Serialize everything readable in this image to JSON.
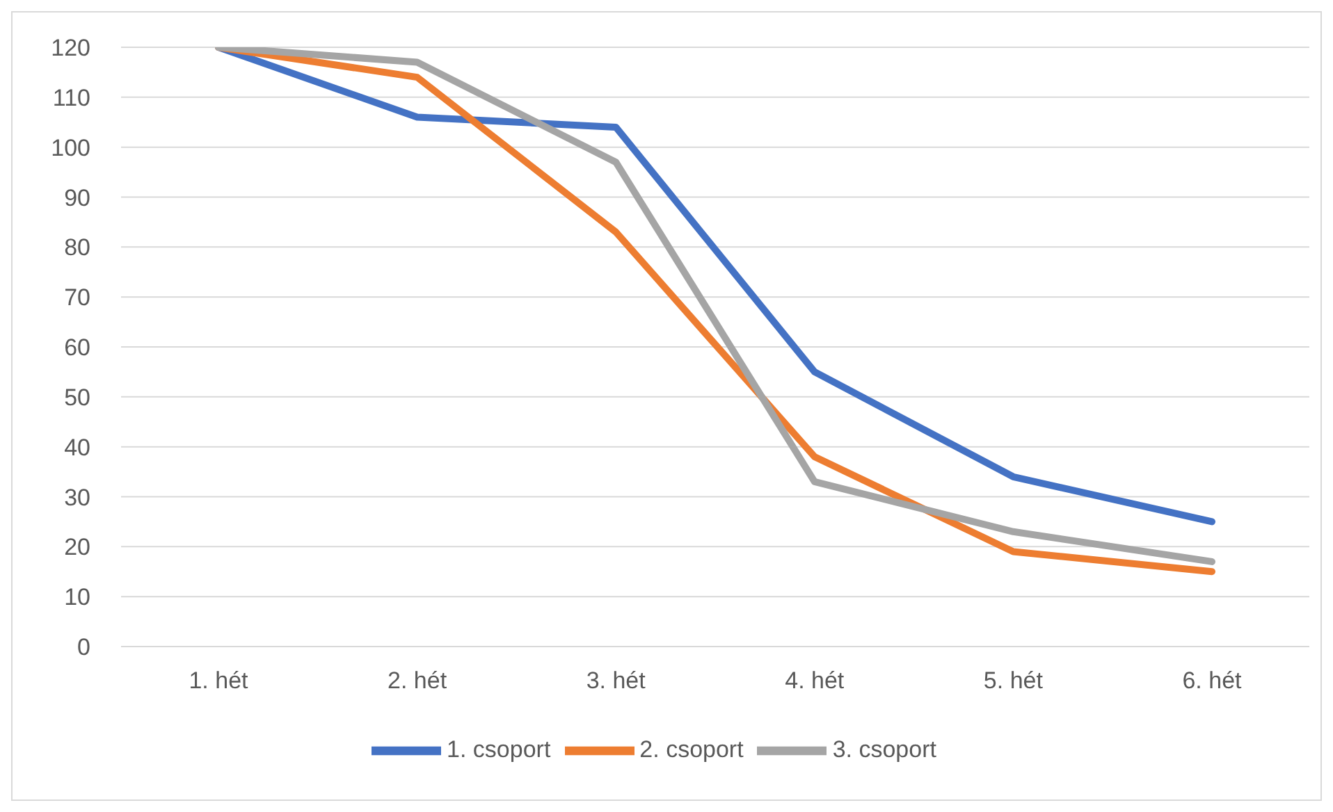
{
  "chart_data": {
    "type": "line",
    "categories": [
      "1. hét",
      "2. hét",
      "3. hét",
      "4. hét",
      "5. hét",
      "6. hét"
    ],
    "series": [
      {
        "name": "1. csoport",
        "color": "#4472c4",
        "values": [
          120,
          106,
          104,
          55,
          34,
          25
        ]
      },
      {
        "name": "2. csoport",
        "color": "#ed7d31",
        "values": [
          120,
          114,
          83,
          38,
          19,
          15
        ]
      },
      {
        "name": "3. csoport",
        "color": "#a5a5a5",
        "values": [
          120,
          117,
          97,
          33,
          23,
          17
        ]
      }
    ],
    "ylim": [
      0,
      120
    ],
    "yticks": [
      0,
      10,
      20,
      30,
      40,
      50,
      60,
      70,
      80,
      90,
      100,
      110,
      120
    ],
    "grid": "y",
    "legend": "bottom",
    "marker": "none",
    "line_style": "solid"
  }
}
